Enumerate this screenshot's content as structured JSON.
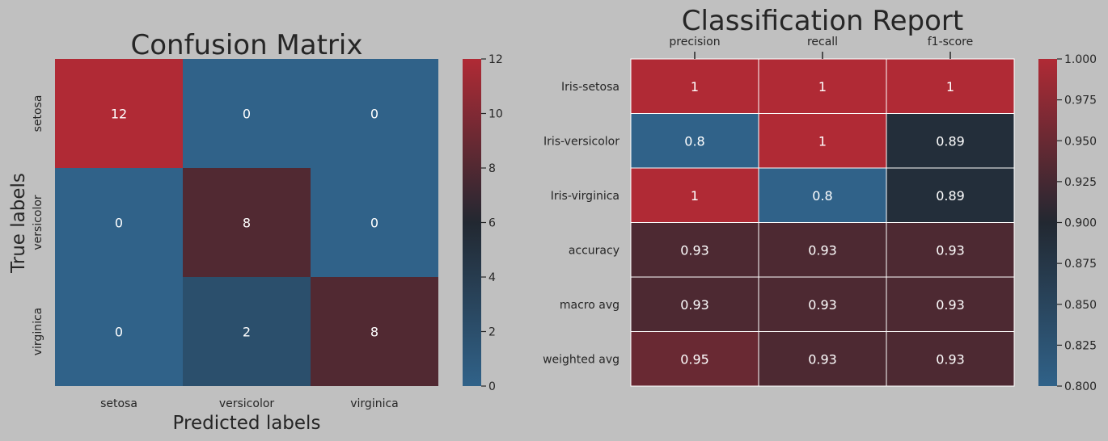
{
  "colors": {
    "background": "#c0c0c0",
    "cmap_low": "#306289",
    "cmap_mid": "#222831",
    "cmap_high": "#b02a35",
    "cell_text": "#ffffff",
    "label_text": "#262626",
    "grid_line": "#ffffff"
  },
  "chart_data": [
    {
      "type": "heatmap",
      "title": "Confusion Matrix",
      "xlabel": "Predicted labels",
      "ylabel": "True labels",
      "x_categories": [
        "setosa",
        "versicolor",
        "virginica"
      ],
      "y_categories": [
        "setosa",
        "versicolor",
        "virginica"
      ],
      "values": [
        [
          12,
          0,
          0
        ],
        [
          0,
          8,
          0
        ],
        [
          0,
          2,
          8
        ]
      ],
      "annotations": [
        [
          "12",
          "0",
          "0"
        ],
        [
          "0",
          "8",
          "0"
        ],
        [
          "0",
          "2",
          "8"
        ]
      ],
      "vmin": 0,
      "vmax": 12,
      "colorbar_ticks": [
        "0",
        "2",
        "4",
        "6",
        "8",
        "10",
        "12"
      ],
      "xticks_position": "bottom",
      "grid_lines": false
    },
    {
      "type": "heatmap",
      "title": "Classification Report",
      "xlabel": "",
      "ylabel": "",
      "x_categories": [
        "precision",
        "recall",
        "f1-score"
      ],
      "y_categories": [
        "Iris-setosa",
        "Iris-versicolor",
        "Iris-virginica",
        "accuracy",
        "macro avg",
        "weighted avg"
      ],
      "values": [
        [
          1.0,
          1.0,
          1.0
        ],
        [
          0.8,
          1.0,
          0.89
        ],
        [
          1.0,
          0.8,
          0.89
        ],
        [
          0.93,
          0.93,
          0.93
        ],
        [
          0.93,
          0.93,
          0.93
        ],
        [
          0.95,
          0.93,
          0.93
        ]
      ],
      "annotations": [
        [
          "1",
          "1",
          "1"
        ],
        [
          "0.8",
          "1",
          "0.89"
        ],
        [
          "1",
          "0.8",
          "0.89"
        ],
        [
          "0.93",
          "0.93",
          "0.93"
        ],
        [
          "0.93",
          "0.93",
          "0.93"
        ],
        [
          "0.95",
          "0.93",
          "0.93"
        ]
      ],
      "vmin": 0.8,
      "vmax": 1.0,
      "colorbar_ticks": [
        "0.800",
        "0.825",
        "0.850",
        "0.875",
        "0.900",
        "0.925",
        "0.950",
        "0.975",
        "1.000"
      ],
      "xticks_position": "top",
      "grid_lines": true
    }
  ]
}
